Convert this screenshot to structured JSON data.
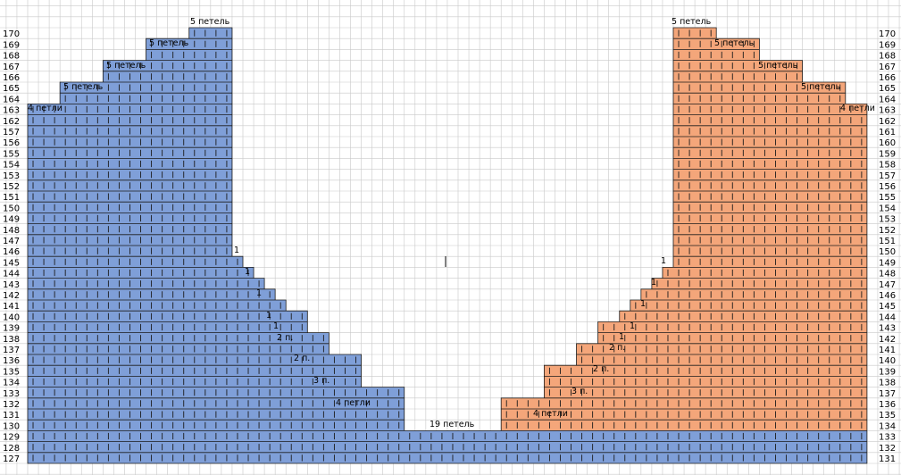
{
  "colors": {
    "background": "#ffffff",
    "grid_line": "#c9c9c9",
    "blue_fill": "#7f9fd8",
    "orange_fill": "#f4a67a",
    "stitch_line": "#1c1c1c"
  },
  "left_row_numbers": [
    "170",
    "169",
    "168",
    "167",
    "166",
    "165",
    "164",
    "163",
    "162",
    "157",
    "156",
    "155",
    "154",
    "153",
    "152",
    "151",
    "150",
    "149",
    "148",
    "147",
    "146",
    "145",
    "144",
    "143",
    "142",
    "141",
    "140",
    "139",
    "138",
    "137",
    "136",
    "135",
    "134",
    "133",
    "132",
    "131",
    "130",
    "129",
    "128",
    "127"
  ],
  "right_row_numbers": [
    "170",
    "169",
    "168",
    "167",
    "166",
    "165",
    "164",
    "163",
    "162",
    "161",
    "160",
    "159",
    "158",
    "157",
    "156",
    "155",
    "154",
    "153",
    "152",
    "151",
    "150",
    "149",
    "148",
    "147",
    "146",
    "145",
    "144",
    "143",
    "142",
    "141",
    "140",
    "139",
    "138",
    "137",
    "136",
    "135",
    "134",
    "133",
    "132",
    "131"
  ],
  "annotations": {
    "left": [
      "5 петель",
      "5 петель",
      "5 петель",
      "5 петель",
      "4 петли",
      "1",
      "1",
      "1",
      "1",
      "1",
      "2 п.",
      "2 п.",
      "3 п.",
      "4 петли"
    ],
    "bottom_center": "19 петель",
    "right": [
      "5 петель",
      "5 петель",
      "5 петель",
      "5 петель",
      "4 петли",
      "1",
      "1",
      "1",
      "1",
      "1",
      "2 п.",
      "2 п.",
      "3 п.",
      "4 петли"
    ]
  },
  "chart_data": {
    "type": "knitting-chart",
    "left_shape": {
      "color": "blue",
      "top_steps_stitches": [
        5,
        5,
        5,
        5,
        4
      ],
      "side_decreases": [
        1,
        1,
        1,
        1,
        1,
        2,
        2,
        3,
        4
      ]
    },
    "bottom_band": {
      "rows": 3,
      "color": "blue"
    },
    "center_gap_stitches": 19,
    "right_shape": {
      "color": "orange",
      "top_steps_stitches": [
        5,
        5,
        5,
        5,
        4
      ],
      "side_decreases": [
        1,
        1,
        1,
        1,
        1,
        2,
        2,
        3,
        4
      ]
    }
  }
}
